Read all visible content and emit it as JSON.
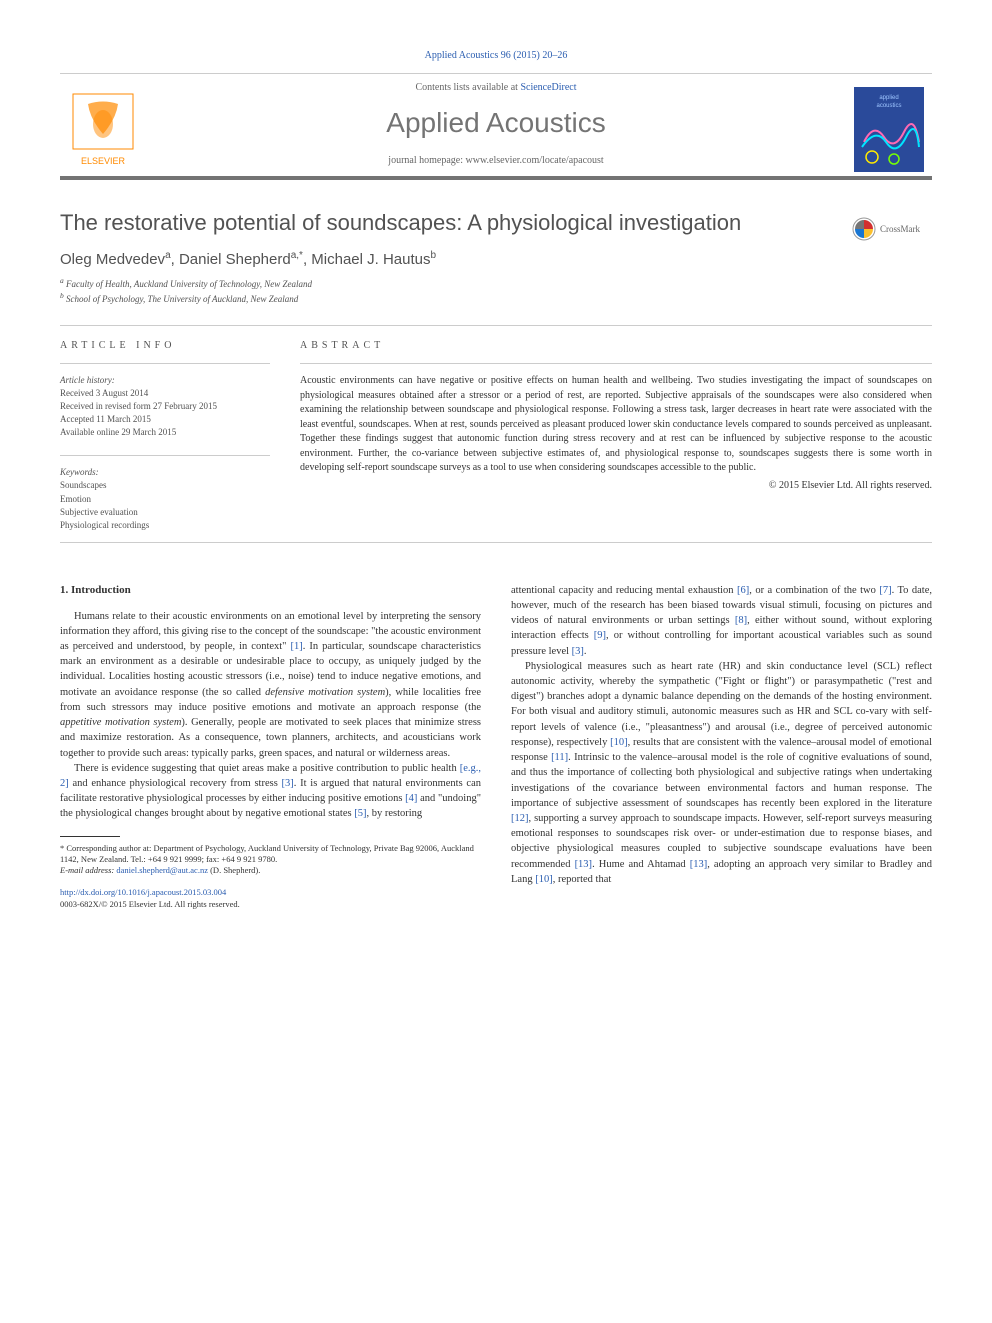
{
  "header": {
    "citation": "Applied Acoustics 96 (2015) 20–26",
    "contents_prefix": "Contents lists available at ",
    "contents_link": "ScienceDirect",
    "journal_name": "Applied Acoustics",
    "homepage_prefix": "journal homepage: ",
    "homepage_url": "www.elsevier.com/locate/apacoust"
  },
  "logos": {
    "elsevier_fill": "#ff8a00",
    "elsevier_label": "ELSEVIER",
    "cover_bg": "#2a4a9a",
    "cover_label": "applied acoustics"
  },
  "crossmark": {
    "label": "CrossMark",
    "colors": [
      "#d32f2f",
      "#fbc02d",
      "#1976d2",
      "#757575"
    ]
  },
  "article": {
    "title": "The restorative potential of soundscapes: A physiological investigation",
    "authors_html": "Oleg Medvedev<sup>a</sup>, Daniel Shepherd<sup>a,*</sup>, Michael J. Hautus<sup>b</sup>",
    "affiliations": [
      "Faculty of Health, Auckland University of Technology, New Zealand",
      "School of Psychology, The University of Auckland, New Zealand"
    ]
  },
  "info": {
    "label": "ARTICLE INFO",
    "history_label": "Article history:",
    "history": [
      "Received 3 August 2014",
      "Received in revised form 27 February 2015",
      "Accepted 11 March 2015",
      "Available online 29 March 2015"
    ],
    "keywords_label": "Keywords:",
    "keywords": [
      "Soundscapes",
      "Emotion",
      "Subjective evaluation",
      "Physiological recordings"
    ]
  },
  "abstract": {
    "label": "ABSTRACT",
    "text": "Acoustic environments can have negative or positive effects on human health and wellbeing. Two studies investigating the impact of soundscapes on physiological measures obtained after a stressor or a period of rest, are reported. Subjective appraisals of the soundscapes were also considered when examining the relationship between soundscape and physiological response. Following a stress task, larger decreases in heart rate were associated with the least eventful, soundscapes. When at rest, sounds perceived as pleasant produced lower skin conductance levels compared to sounds perceived as unpleasant. Together these findings suggest that autonomic function during stress recovery and at rest can be influenced by subjective response to the acoustic environment. Further, the co-variance between subjective estimates of, and physiological response to, soundscapes suggests there is some worth in developing self-report soundscape surveys as a tool to use when considering soundscapes accessible to the public.",
    "copyright": "© 2015 Elsevier Ltd. All rights reserved."
  },
  "body": {
    "section1_heading": "1. Introduction",
    "col1_p1": "Humans relate to their acoustic environments on an emotional level by interpreting the sensory information they afford, this giving rise to the concept of the soundscape: \"the acoustic environment as perceived and understood, by people, in context\" [1]. In particular, soundscape characteristics mark an environment as a desirable or undesirable place to occupy, as uniquely judged by the individual. Localities hosting acoustic stressors (i.e., noise) tend to induce negative emotions, and motivate an avoidance response (the so called defensive motivation system), while localities free from such stressors may induce positive emotions and motivate an approach response (the appetitive motivation system). Generally, people are motivated to seek places that minimize stress and maximize restoration. As a consequence, town planners, architects, and acousticians work together to provide such areas: typically parks, green spaces, and natural or wilderness areas.",
    "col1_p2": "There is evidence suggesting that quiet areas make a positive contribution to public health [e.g., 2] and enhance physiological recovery from stress [3]. It is argued that natural environments can facilitate restorative physiological processes by either inducing positive emotions [4] and \"undoing\" the physiological changes brought about by negative emotional states [5], by restoring",
    "col2_p1": "attentional capacity and reducing mental exhaustion [6], or a combination of the two [7]. To date, however, much of the research has been biased towards visual stimuli, focusing on pictures and videos of natural environments or urban settings [8], either without sound, without exploring interaction effects [9], or without controlling for important acoustical variables such as sound pressure level [3].",
    "col2_p2": "Physiological measures such as heart rate (HR) and skin conductance level (SCL) reflect autonomic activity, whereby the sympathetic (\"Fight or flight\") or parasympathetic (\"rest and digest\") branches adopt a dynamic balance depending on the demands of the hosting environment. For both visual and auditory stimuli, autonomic measures such as HR and SCL co-vary with self-report levels of valence (i.e., \"pleasantness\") and arousal (i.e., degree of perceived autonomic response), respectively [10], results that are consistent with the valence–arousal model of emotional response [11]. Intrinsic to the valence–arousal model is the role of cognitive evaluations of sound, and thus the importance of collecting both physiological and subjective ratings when undertaking investigations of the covariance between environmental factors and human response. The importance of subjective assessment of soundscapes has recently been explored in the literature [12], supporting a survey approach to soundscape impacts. However, self-report surveys measuring emotional responses to soundscapes risk over- or under-estimation due to response biases, and objective physiological measures coupled to subjective soundscape evaluations have been recommended [13]. Hume and Ahtamad [13], adopting an approach very similar to Bradley and Lang [10], reported that"
  },
  "footnote": {
    "corresponding": "* Corresponding author at: Department of Psychology, Auckland University of Technology, Private Bag 92006, Auckland 1142, New Zealand. Tel.: +64 9 921 9999; fax: +64 9 921 9780.",
    "email_label": "E-mail address:",
    "email": "daniel.shepherd@aut.ac.nz",
    "email_suffix": "(D. Shepherd)."
  },
  "footer": {
    "doi": "http://dx.doi.org/10.1016/j.apacoust.2015.03.004",
    "issn_line": "0003-682X/© 2015 Elsevier Ltd. All rights reserved."
  },
  "refs": [
    "[1]",
    "[e.g., 2]",
    "[3]",
    "[4]",
    "[5]",
    "[6]",
    "[7]",
    "[8]",
    "[9]",
    "[10]",
    "[11]",
    "[12]",
    "[13]"
  ],
  "colors": {
    "link": "#2a5db0",
    "rule": "#737373",
    "text": "#333333",
    "muted": "#525252"
  }
}
